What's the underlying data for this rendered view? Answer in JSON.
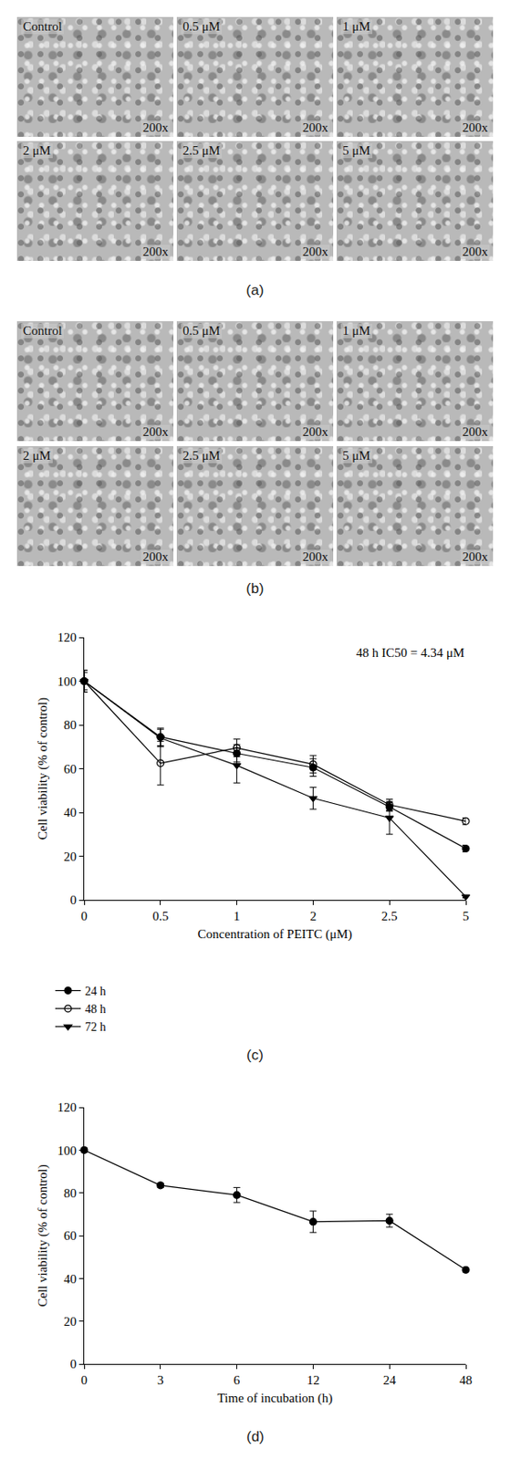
{
  "micrograph_panels": [
    {
      "label": "(a)",
      "images": [
        {
          "label": "Control",
          "magnification": "200x"
        },
        {
          "label": "0.5 μM",
          "magnification": "200x"
        },
        {
          "label": "1 μM",
          "magnification": "200x"
        },
        {
          "label": "2 μM",
          "magnification": "200x"
        },
        {
          "label": "2.5 μM",
          "magnification": "200x"
        },
        {
          "label": "5 μM",
          "magnification": "200x"
        }
      ]
    },
    {
      "label": "(b)",
      "images": [
        {
          "label": "Control",
          "magnification": "200x"
        },
        {
          "label": "0.5 μM",
          "magnification": "200x"
        },
        {
          "label": "1 μM",
          "magnification": "200x"
        },
        {
          "label": "2 μM",
          "magnification": "200x"
        },
        {
          "label": "2.5 μM",
          "magnification": "200x"
        },
        {
          "label": "5 μM",
          "magnification": "200x"
        }
      ]
    }
  ],
  "chart_data": [
    {
      "type": "line",
      "panel_label": "(c)",
      "xlabel": "Concentration of PEITC (μM)",
      "ylabel": "Cell viability (% of control)",
      "annotation": "48 h IC50 = 4.34 μM",
      "categories": [
        "0",
        "0.5",
        "1",
        "2",
        "2.5",
        "5"
      ],
      "ylim": [
        0,
        120
      ],
      "yticks": [
        0,
        20,
        40,
        60,
        80,
        100,
        120
      ],
      "grid": false,
      "legend": "bottom",
      "series": [
        {
          "name": "24 h",
          "color": "#000000",
          "marker": "circle",
          "line_style": "solid",
          "values": [
            100,
            74.5,
            67,
            60.5,
            42.5,
            23.5
          ],
          "errors": [
            5,
            4,
            4,
            4,
            2,
            1.5
          ]
        },
        {
          "name": "48 h",
          "color": "#000000",
          "marker": "circle-open",
          "line_style": "solid",
          "values": [
            100,
            62.5,
            69.5,
            62,
            43.5,
            36
          ],
          "errors": [
            5,
            10,
            4,
            4,
            2.5,
            1.5
          ]
        },
        {
          "name": "72 h",
          "color": "#000000",
          "marker": "triangle-down",
          "line_style": "solid",
          "values": [
            100,
            74,
            61.5,
            46.5,
            37.5,
            1.5
          ],
          "errors": [
            4,
            4,
            8,
            5,
            7.5,
            0.5
          ]
        }
      ]
    },
    {
      "type": "line",
      "panel_label": "(d)",
      "xlabel": "Time of incubation (h)",
      "ylabel": "Cell viability (% of control)",
      "categories": [
        "0",
        "3",
        "6",
        "12",
        "24",
        "48"
      ],
      "ylim": [
        0,
        120
      ],
      "yticks": [
        0,
        20,
        40,
        60,
        80,
        100,
        120
      ],
      "grid": false,
      "series": [
        {
          "color": "#000000",
          "marker": "circle",
          "line_style": "solid",
          "values": [
            100,
            83.5,
            79,
            66.5,
            67,
            44
          ],
          "errors": [
            1,
            1,
            3.5,
            5,
            3,
            1
          ]
        }
      ]
    }
  ]
}
